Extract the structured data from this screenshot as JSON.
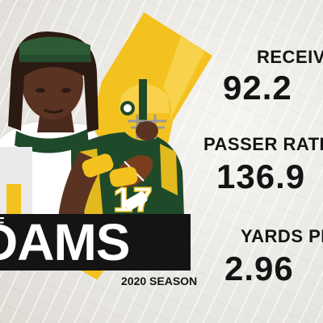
{
  "player": {
    "first_name": "E",
    "last_name": "DAMS",
    "season": "2020 SEASON",
    "jersey_number": "17",
    "team_colors": {
      "green": "#1f4a2a",
      "gold": "#f4c21f"
    }
  },
  "stats": [
    {
      "label": "RECEIVING",
      "value": "92.2"
    },
    {
      "label": "PASSER RATING W",
      "value": "136.9"
    },
    {
      "label": "YARDS PER",
      "value": "2.96"
    }
  ],
  "icons": [
    "player-portrait-figure",
    "player-catching-figure",
    "paint-brush-stroke"
  ]
}
